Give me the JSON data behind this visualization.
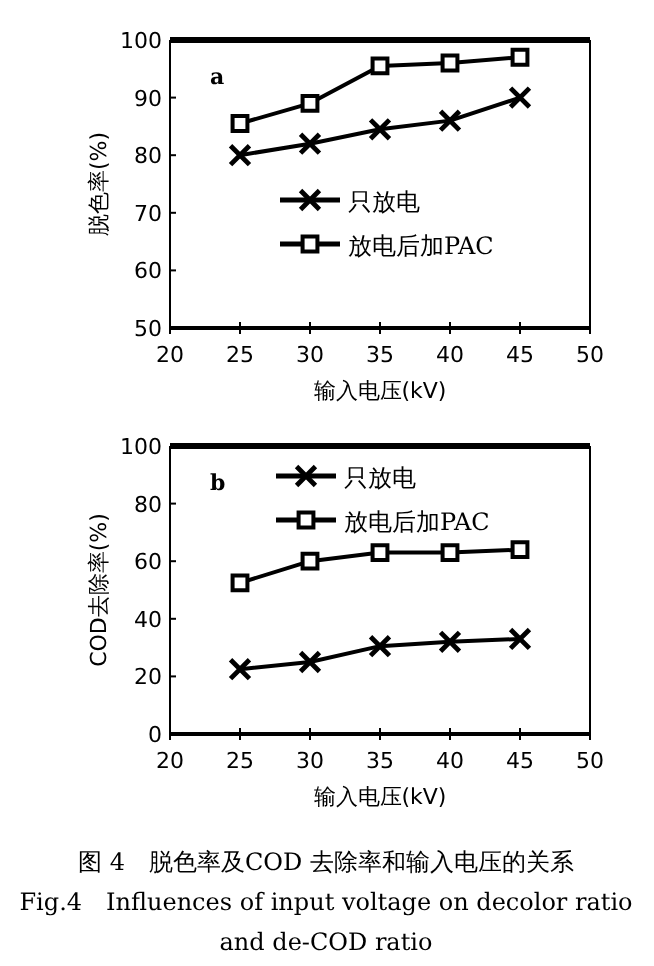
{
  "chart_data": [
    {
      "type": "line",
      "xlabel": "输入电压(kV)",
      "ylabel": "脱色率(%)",
      "annotations": [
        "a"
      ],
      "x": [
        25,
        30,
        35,
        40,
        45
      ],
      "xlim": [
        20,
        50
      ],
      "xticks": [
        20,
        25,
        30,
        35,
        40,
        45,
        50
      ],
      "ylim": [
        50,
        100
      ],
      "yticks": [
        50,
        60,
        70,
        80,
        90,
        100
      ],
      "legend": "center",
      "grid": false,
      "series": [
        {
          "name": "只放电",
          "color": "#000000",
          "marker": "cross",
          "values": [
            80,
            82,
            84.5,
            86,
            90
          ]
        },
        {
          "name": "放电后加PAC",
          "color": "#000000",
          "marker": "square",
          "values": [
            85.5,
            89,
            95.5,
            96,
            97
          ]
        }
      ]
    },
    {
      "type": "line",
      "xlabel": "输入电压(kV)",
      "ylabel": "COD去除率(%)",
      "annotations": [
        "b",
        "图 4　脱色率及COD 去除率和输入电压的关系",
        "Fig.4　Influences of input voltage on decolor ratio and de-COD ratio"
      ],
      "x": [
        25,
        30,
        35,
        40,
        45
      ],
      "xlim": [
        20,
        50
      ],
      "xticks": [
        20,
        25,
        30,
        35,
        40,
        45,
        50
      ],
      "ylim": [
        0,
        100
      ],
      "yticks": [
        0,
        20,
        40,
        60,
        80,
        100
      ],
      "legend": "top",
      "grid": false,
      "series": [
        {
          "name": "只放电",
          "color": "#000000",
          "marker": "cross",
          "values": [
            22.5,
            25,
            30.5,
            32,
            33
          ]
        },
        {
          "name": "放电后加PAC",
          "color": "#000000",
          "marker": "square",
          "values": [
            52.5,
            60,
            63,
            63,
            64
          ]
        }
      ]
    }
  ]
}
